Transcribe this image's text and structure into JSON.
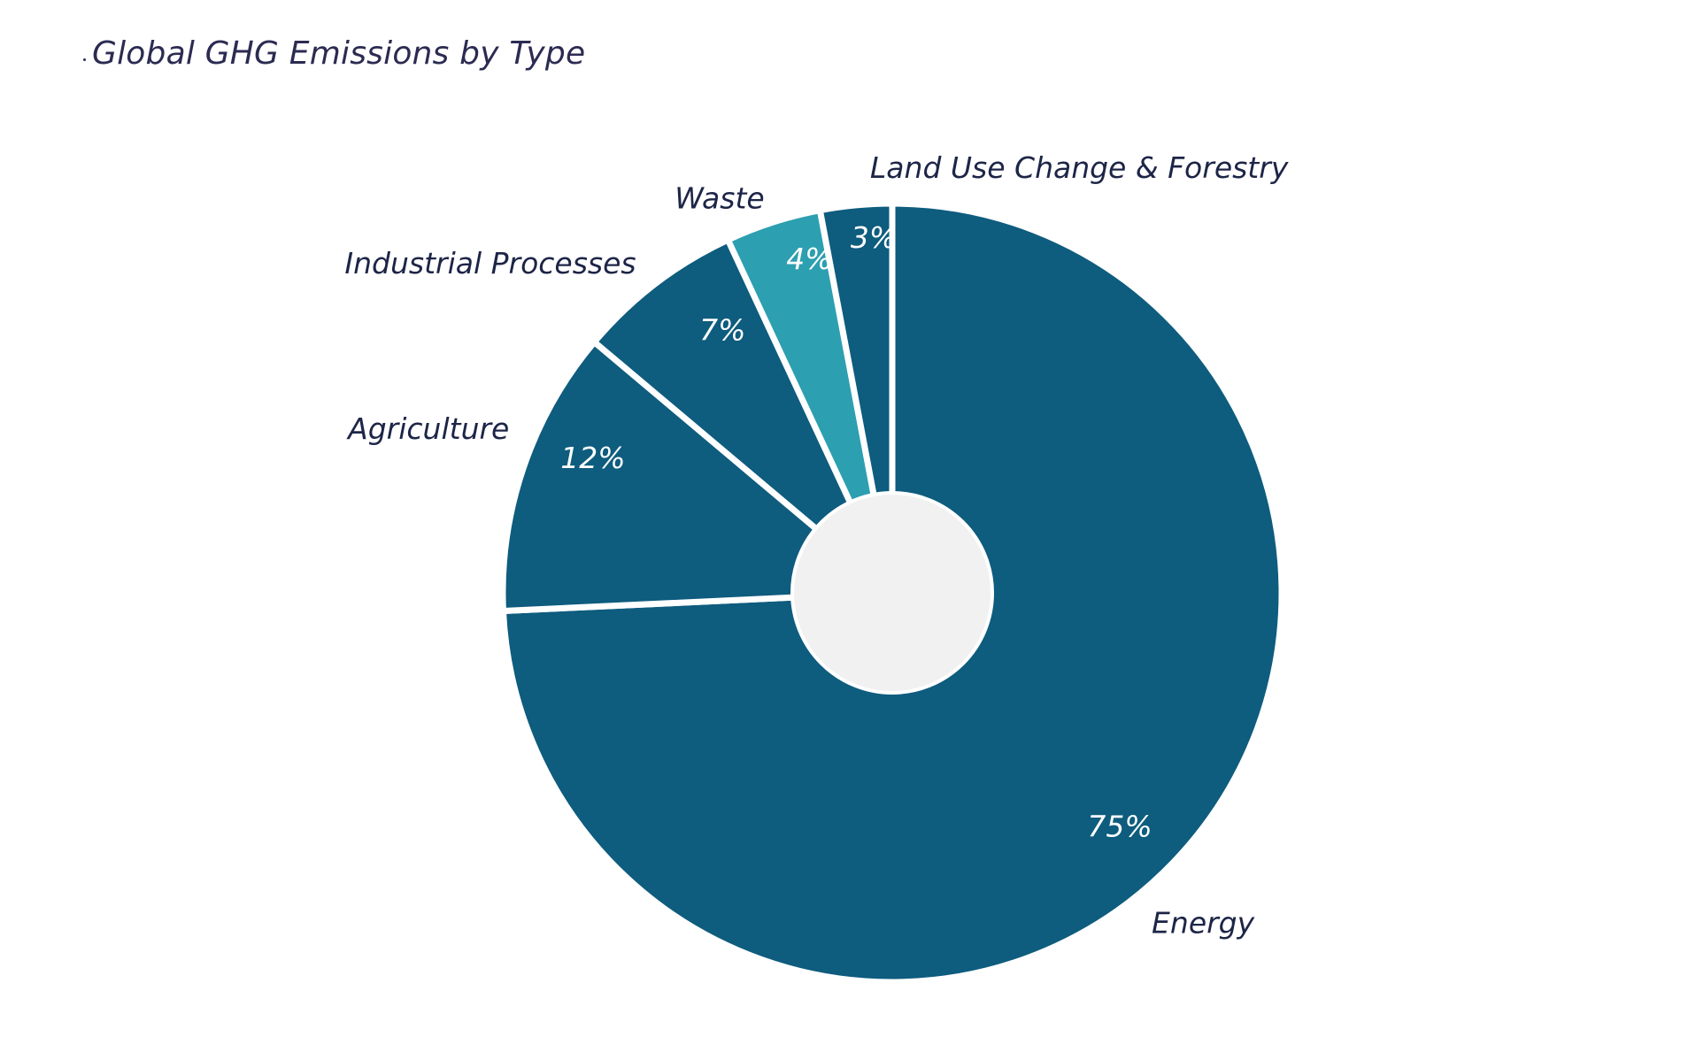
{
  "chart_data": {
    "type": "pie",
    "title": "Global GHG Emissions by Type",
    "donut": true,
    "slices": [
      {
        "label": "Energy",
        "value": 75,
        "value_label": "75%",
        "color": "#0e5c7e"
      },
      {
        "label": "Agriculture",
        "value": 12,
        "value_label": "12%",
        "color": "#0e5c7e"
      },
      {
        "label": "Industrial Processes",
        "value": 7,
        "value_label": "7%",
        "color": "#0e5c7e"
      },
      {
        "label": "Waste",
        "value": 4,
        "value_label": "4%",
        "color": "#2c9fb0"
      },
      {
        "label": "Land Use Change & Forestry",
        "value": 3,
        "value_label": "3%",
        "color": "#0e5c7e"
      }
    ],
    "hole_color": "#f1f1f1",
    "separator_color": "#ffffff"
  }
}
